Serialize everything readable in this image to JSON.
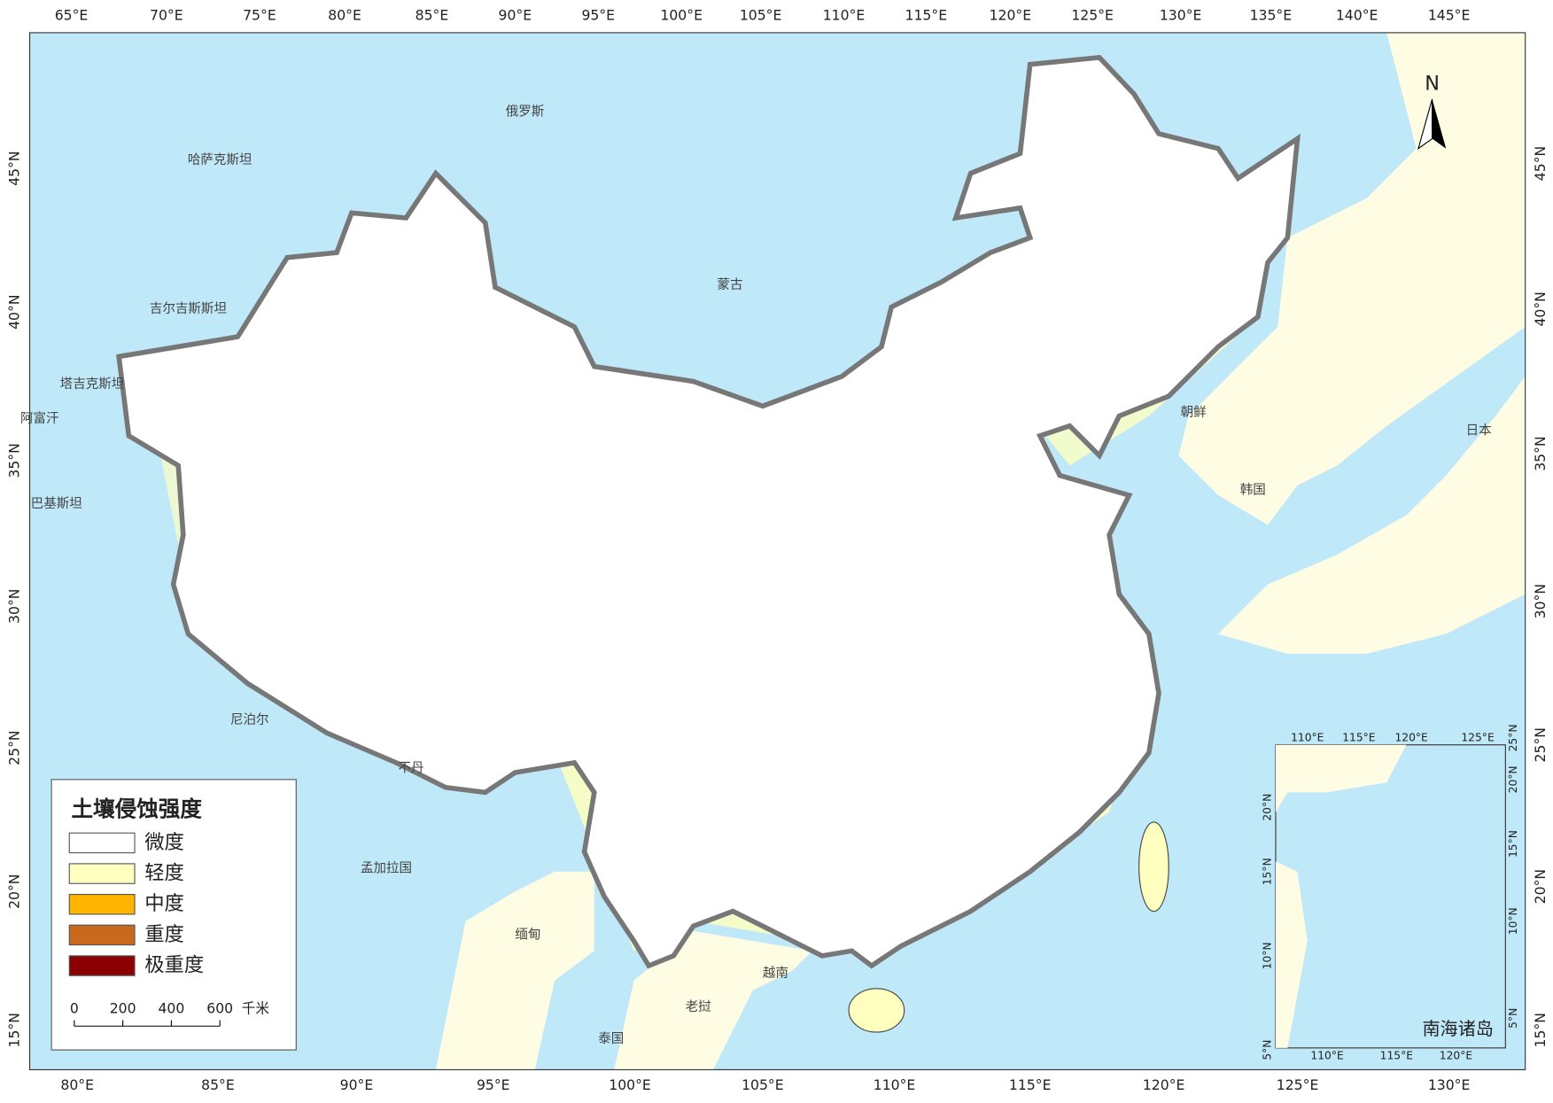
{
  "graticule": {
    "top": [
      "65°E",
      "70°E",
      "75°E",
      "80°E",
      "85°E",
      "90°E",
      "95°E",
      "100°E",
      "105°E",
      "110°E",
      "115°E",
      "120°E",
      "125°E",
      "130°E",
      "135°E",
      "140°E",
      "145°E"
    ],
    "bottom": [
      "80°E",
      "85°E",
      "90°E",
      "95°E",
      "100°E",
      "105°E",
      "110°E",
      "115°E",
      "120°E",
      "125°E",
      "130°E"
    ],
    "left": [
      "15°N",
      "20°N",
      "25°N",
      "30°N",
      "35°N",
      "40°N",
      "45°N"
    ],
    "right": [
      "15°N",
      "20°N",
      "25°N",
      "30°N",
      "35°N",
      "40°N",
      "45°N"
    ]
  },
  "countries": [
    "俄罗斯",
    "哈萨克斯坦",
    "蒙古",
    "吉尔吉斯斯坦",
    "塔吉克斯坦",
    "阿富汗",
    "巴基斯坦",
    "朝鲜",
    "日本",
    "韩国",
    "尼泊尔",
    "不丹",
    "孟加拉国",
    "缅甸",
    "越南",
    "老挝",
    "泰国"
  ],
  "north": "N",
  "legend": {
    "title": "土壤侵蚀强度",
    "items": [
      {
        "label": "微度",
        "color": "#ffffff"
      },
      {
        "label": "轻度",
        "color": "#ffffc0"
      },
      {
        "label": "中度",
        "color": "#ffb400"
      },
      {
        "label": "重度",
        "color": "#c8691e"
      },
      {
        "label": "极重度",
        "color": "#8b0000"
      }
    ]
  },
  "scale_bar": {
    "ticks": [
      0,
      200,
      400,
      600
    ],
    "unit": "千米"
  },
  "inset": {
    "title": "南海诸岛",
    "top": [
      "110°E",
      "115°E",
      "120°E",
      "125°E"
    ],
    "bottom": [
      "110°E",
      "115°E",
      "120°E"
    ],
    "left": [
      "5°N",
      "10°N",
      "15°N",
      "20°N"
    ],
    "right": [
      "5°N",
      "10°N",
      "15°N",
      "20°N",
      "25°N"
    ]
  }
}
